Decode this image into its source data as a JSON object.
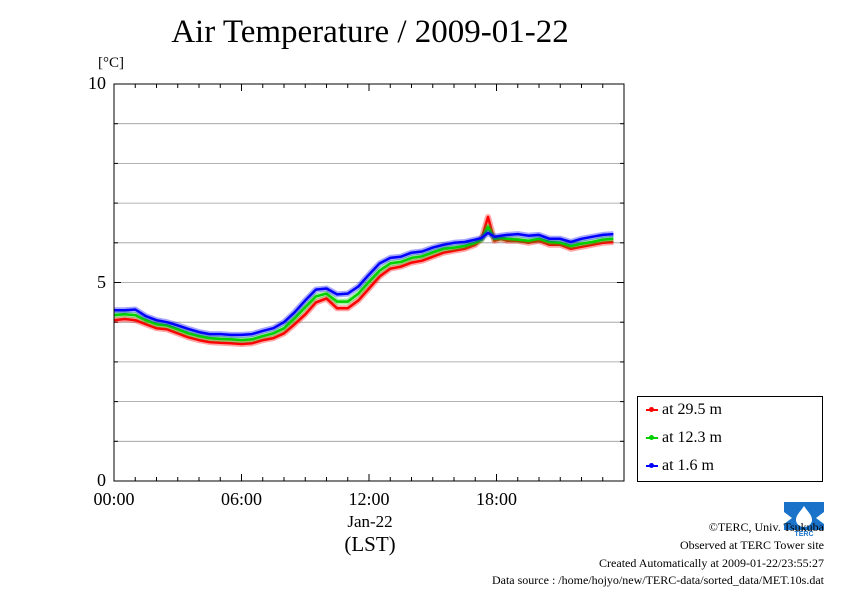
{
  "header": {
    "title": "Air Temperature / 2009-01-22",
    "unit": "[°C]"
  },
  "chart_data": {
    "type": "line",
    "title": "Air Temperature / 2009-01-22",
    "ylabel": "[°C]",
    "xlabel": "(LST)",
    "x_date_label": "Jan-22",
    "xlim": [
      0,
      24
    ],
    "ylim": [
      0,
      10
    ],
    "yticks": [
      0,
      5,
      10
    ],
    "xtick_labels": [
      "00:00",
      "06:00",
      "12:00",
      "18:00"
    ],
    "xtick_hours": [
      0,
      6,
      12,
      18
    ],
    "grid": true,
    "legend_position": "bottom-right-outside",
    "x_hours": [
      0,
      0.5,
      1,
      1.5,
      2,
      2.5,
      3,
      3.5,
      4,
      4.5,
      5,
      5.5,
      6,
      6.5,
      7,
      7.5,
      8,
      8.5,
      9,
      9.5,
      10,
      10.5,
      11,
      11.5,
      12,
      12.5,
      13,
      13.5,
      14,
      14.5,
      15,
      15.5,
      16,
      16.5,
      17,
      17.3,
      17.6,
      17.9,
      18.2,
      18.5,
      19,
      19.5,
      20,
      20.5,
      21,
      21.5,
      22,
      22.5,
      23,
      23.5
    ],
    "series": [
      {
        "name": "at 29.5 m",
        "color": "#ff0000",
        "values": [
          4.05,
          4.08,
          4.05,
          3.95,
          3.85,
          3.82,
          3.72,
          3.62,
          3.55,
          3.5,
          3.48,
          3.47,
          3.45,
          3.47,
          3.55,
          3.6,
          3.72,
          3.95,
          4.2,
          4.5,
          4.6,
          4.35,
          4.35,
          4.55,
          4.85,
          5.15,
          5.35,
          5.4,
          5.5,
          5.55,
          5.65,
          5.75,
          5.8,
          5.85,
          5.95,
          6.1,
          6.65,
          6.05,
          6.1,
          6.05,
          6.05,
          6.0,
          6.05,
          5.95,
          5.95,
          5.85,
          5.9,
          5.95,
          6.0,
          6.02
        ]
      },
      {
        "name": "at 12.3 m",
        "color": "#00d000",
        "values": [
          4.18,
          4.2,
          4.18,
          4.05,
          3.95,
          3.92,
          3.82,
          3.72,
          3.65,
          3.6,
          3.58,
          3.57,
          3.55,
          3.57,
          3.65,
          3.72,
          3.85,
          4.1,
          4.38,
          4.65,
          4.72,
          4.52,
          4.52,
          4.72,
          5.02,
          5.3,
          5.48,
          5.52,
          5.62,
          5.66,
          5.76,
          5.85,
          5.88,
          5.92,
          6.0,
          6.08,
          6.4,
          6.1,
          6.12,
          6.1,
          6.08,
          6.05,
          6.1,
          6.02,
          6.0,
          5.92,
          5.98,
          6.02,
          6.08,
          6.1
        ]
      },
      {
        "name": "at 1.6 m",
        "color": "#0000ff",
        "values": [
          4.3,
          4.3,
          4.32,
          4.15,
          4.05,
          4.0,
          3.92,
          3.83,
          3.75,
          3.7,
          3.7,
          3.68,
          3.68,
          3.7,
          3.78,
          3.85,
          4.0,
          4.25,
          4.55,
          4.82,
          4.85,
          4.7,
          4.72,
          4.9,
          5.2,
          5.48,
          5.62,
          5.65,
          5.75,
          5.78,
          5.88,
          5.95,
          6.0,
          6.02,
          6.08,
          6.12,
          6.25,
          6.15,
          6.18,
          6.2,
          6.22,
          6.18,
          6.2,
          6.1,
          6.1,
          6.02,
          6.1,
          6.15,
          6.2,
          6.22
        ]
      }
    ]
  },
  "footer": {
    "credit1": "©TERC, Univ. Tsukuba",
    "credit2": "Observed at TERC Tower site",
    "credit3": "Created Automatically at 2009-01-22/23:55:27",
    "credit4": "Data source : /home/hojyo/new/TERC-data/sorted_data/MET.10s.dat",
    "logo_text": "TERC"
  }
}
